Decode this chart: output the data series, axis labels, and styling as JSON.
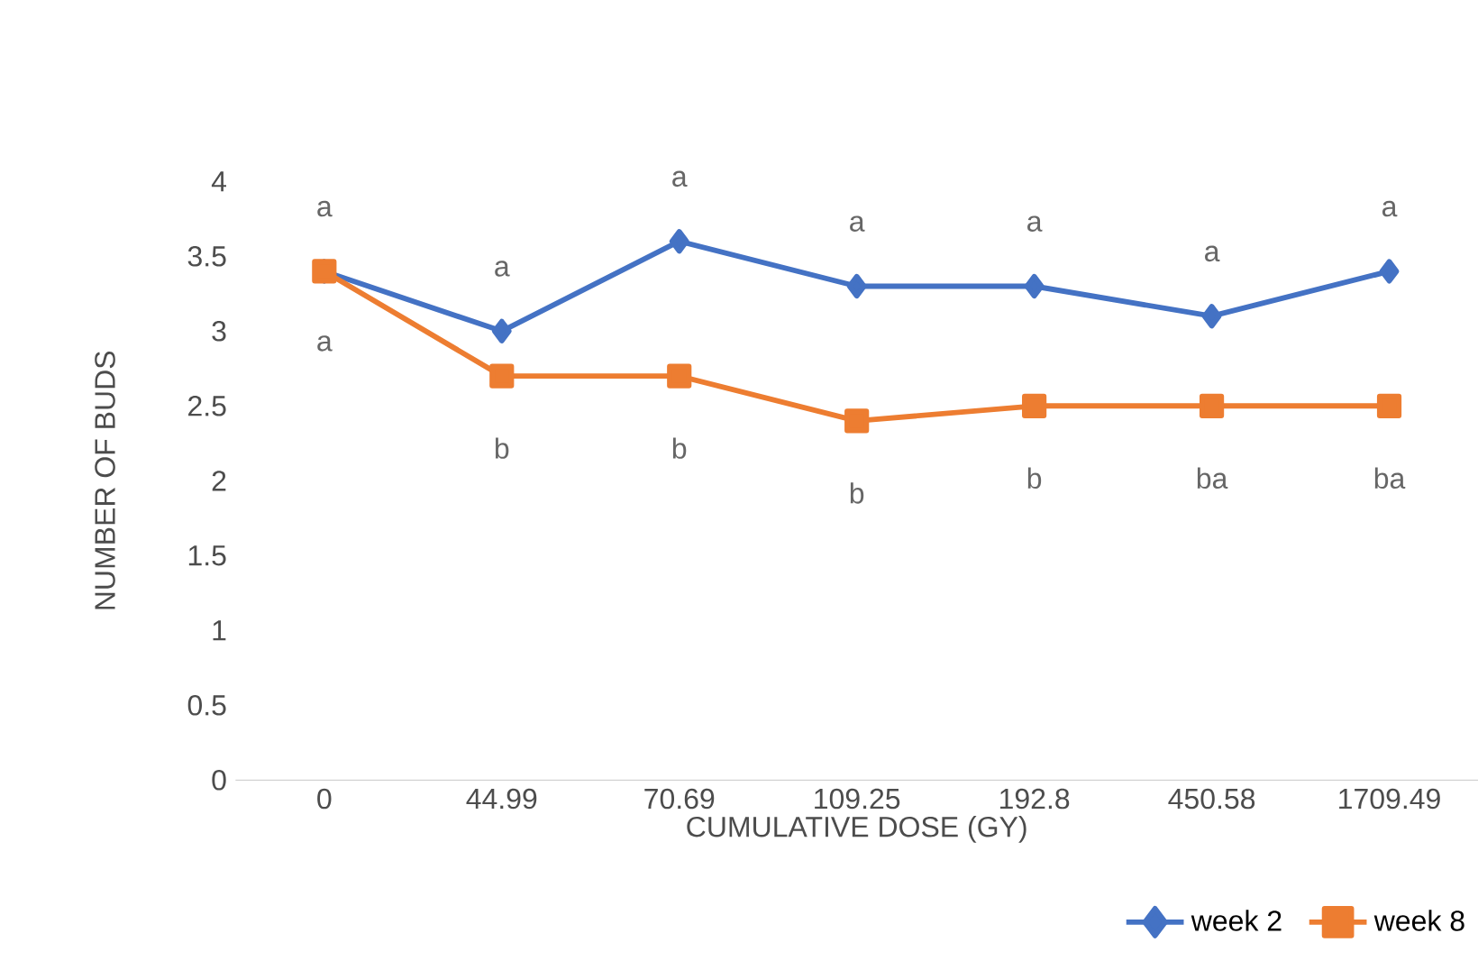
{
  "chart_data": {
    "type": "line",
    "xlabel": "CUMULATIVE DOSE (GY)",
    "ylabel": "NUMBER OF BUDS",
    "categories": [
      "0",
      "44.99",
      "70.69",
      "109.25",
      "192.8",
      "450.58",
      "1709.49"
    ],
    "series": [
      {
        "name": "week 2",
        "color": "#4472c4",
        "marker": "diamond",
        "values": [
          3.4,
          3.0,
          3.6,
          3.3,
          3.3,
          3.1,
          3.4
        ]
      },
      {
        "name": "week 8",
        "color": "#ed7d31",
        "marker": "square",
        "values": [
          3.4,
          2.7,
          2.7,
          2.4,
          2.5,
          2.5,
          2.5
        ]
      }
    ],
    "ylim": [
      0,
      4
    ],
    "yticks": [
      0,
      0.5,
      1,
      1.5,
      2,
      2.5,
      3,
      3.5,
      4
    ],
    "grid": false,
    "legend": "bottom right",
    "line_style": "solid",
    "annotations": [
      "a",
      "a",
      "a",
      "a",
      "a",
      "a",
      "a",
      "a",
      "b",
      "b",
      "b",
      "b",
      "ba",
      "ba"
    ]
  }
}
